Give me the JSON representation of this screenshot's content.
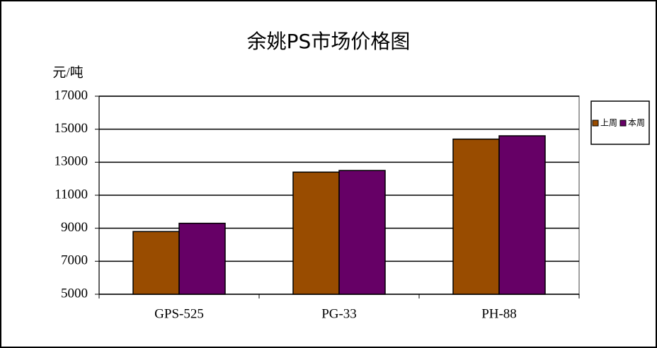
{
  "chart_data": {
    "type": "bar",
    "title": "余姚PS市场价格图",
    "y_label": "元/吨",
    "categories": [
      "GPS-525",
      "PG-33",
      "PH-88"
    ],
    "series": [
      {
        "name": "上周",
        "color": "#994c00",
        "values": [
          8800,
          12400,
          14400
        ]
      },
      {
        "name": "本周",
        "color": "#660066",
        "values": [
          9300,
          12500,
          14600
        ]
      }
    ],
    "ylim": [
      5000,
      17000
    ],
    "yticks": [
      5000,
      7000,
      9000,
      11000,
      13000,
      15000,
      17000
    ],
    "grid": true,
    "legend": "right"
  }
}
